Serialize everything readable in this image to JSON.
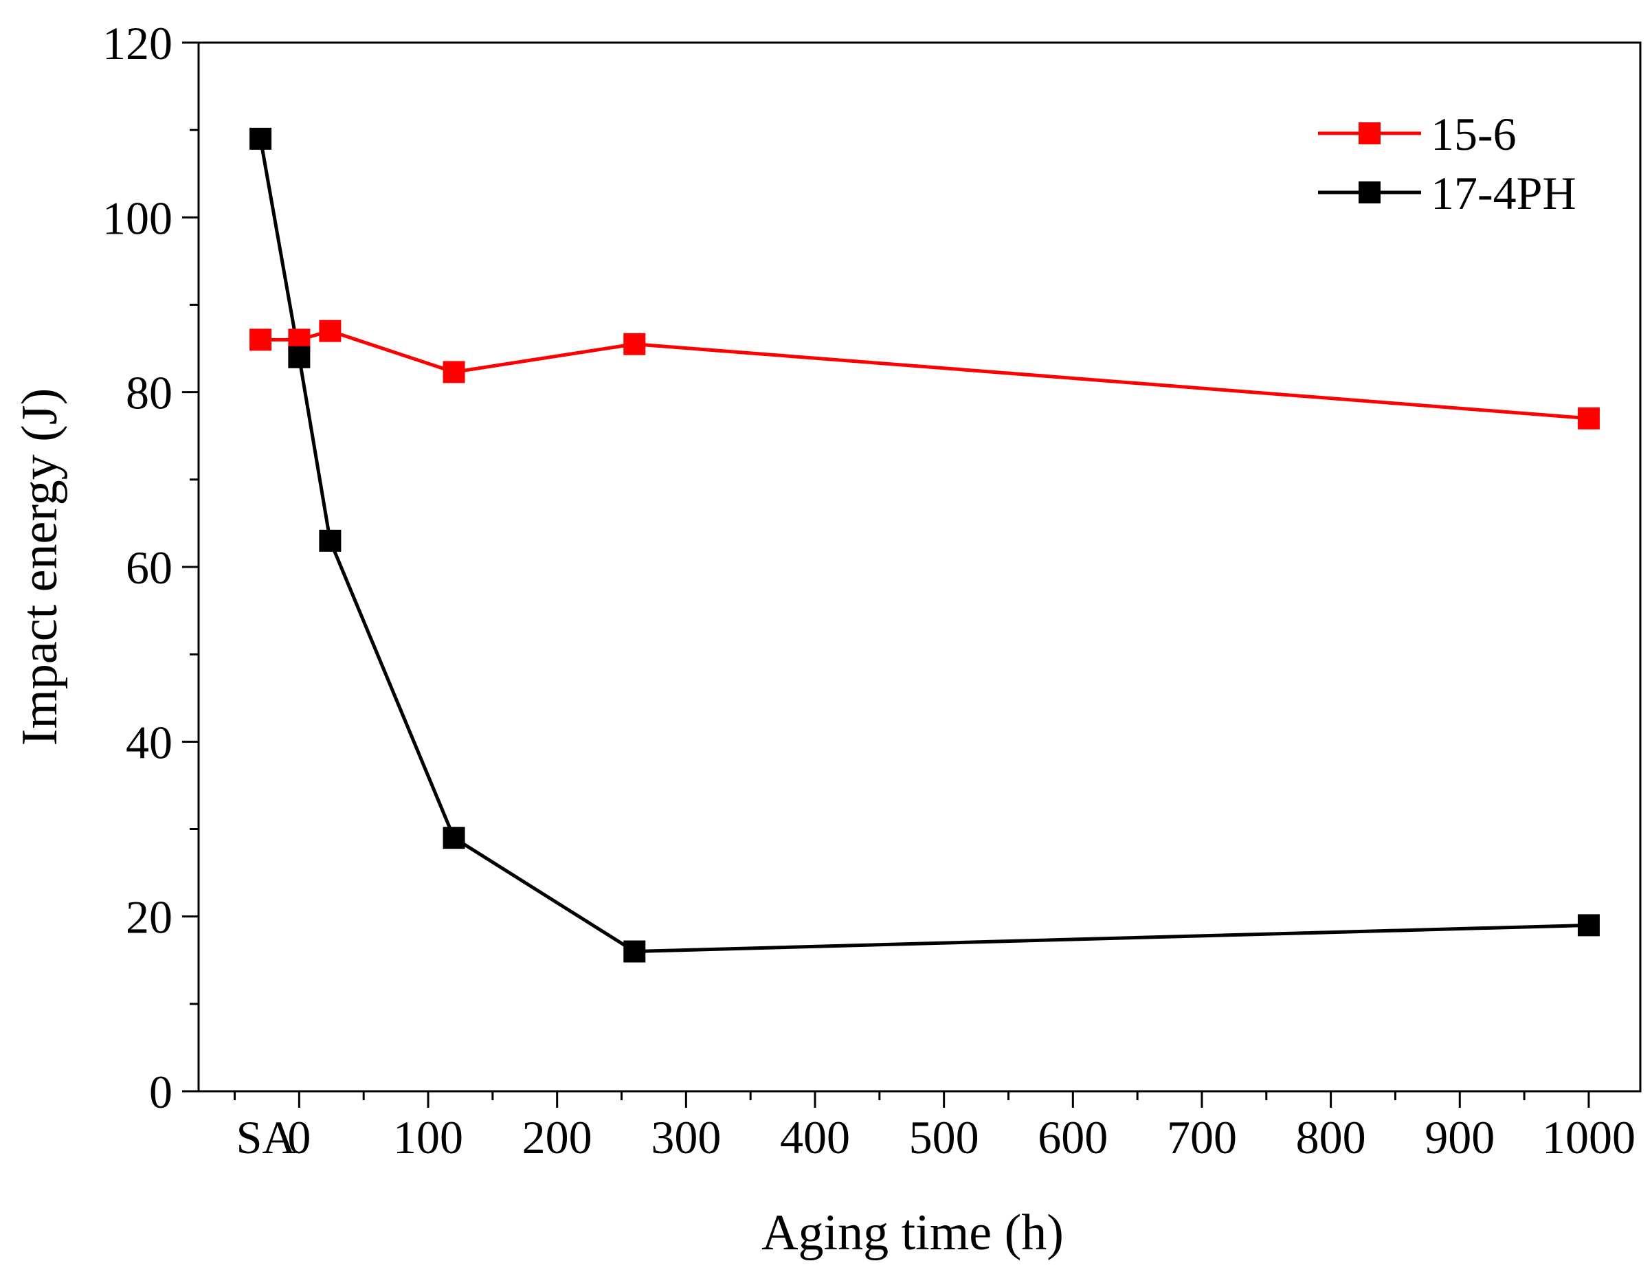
{
  "chart_data": {
    "type": "line",
    "xlabel": "Aging time (h)",
    "ylabel": "Impact energy (J)",
    "ylim": [
      0,
      120
    ],
    "xlim": [
      -78,
      1040
    ],
    "yticks": [
      0,
      20,
      40,
      60,
      80,
      100,
      120
    ],
    "ytick_labels": [
      "0",
      "20",
      "40",
      "60",
      "80",
      "100",
      "120"
    ],
    "xticks": [
      -30,
      0,
      100,
      200,
      300,
      400,
      500,
      600,
      700,
      800,
      900,
      1000
    ],
    "xtick_labels": [
      "SA",
      "0",
      "100",
      "200",
      "300",
      "400",
      "500",
      "600",
      "700",
      "800",
      "900",
      "1000"
    ],
    "x_categorical_note": "SA",
    "series": [
      {
        "name": "15-6",
        "color": "#ff0000",
        "x": [
          -30,
          0,
          24,
          120,
          260,
          1000
        ],
        "values": [
          86,
          86,
          87,
          82.3,
          85.5,
          77
        ]
      },
      {
        "name": "17-4PH",
        "color": "#000000",
        "x": [
          -30,
          0,
          24,
          120,
          260,
          1000
        ],
        "values": [
          109,
          84,
          63,
          29,
          16,
          19
        ]
      }
    ],
    "legend": {
      "position": "top-right",
      "entries": [
        "15-6",
        "17-4PH"
      ]
    }
  }
}
